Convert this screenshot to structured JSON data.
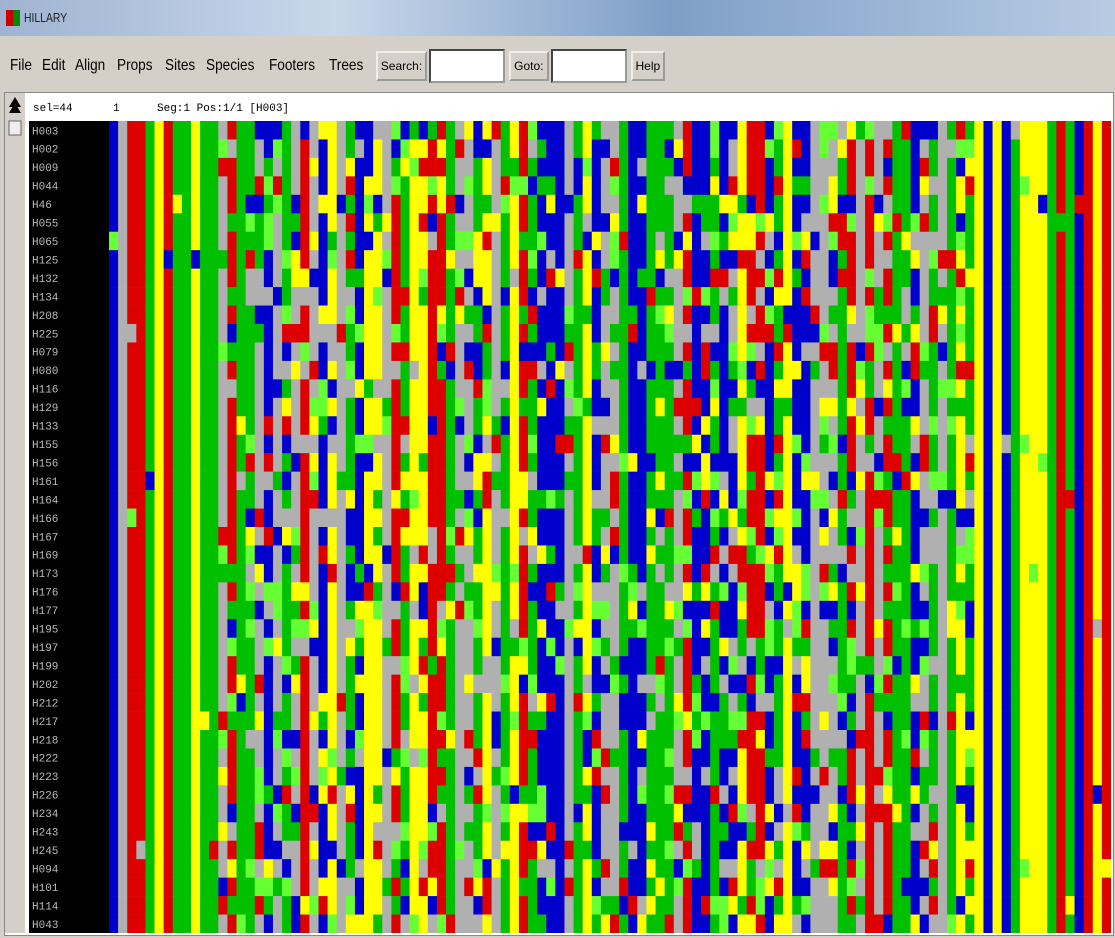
{
  "window": {
    "title": "HILLARY"
  },
  "menu": [
    "File",
    "Edit",
    "Align",
    "Props",
    "Sites",
    "Species",
    "Footers",
    "Trees"
  ],
  "toolbar": {
    "search_label": "Search:",
    "goto_label": "Goto:",
    "help": "Help"
  },
  "status": {
    "selection": "sel=44",
    "position": "1",
    "segment": "Seg:1 Pos:1/1 [H003]"
  },
  "sequences": [
    "H003",
    "H002",
    "H009",
    "H044",
    "H46",
    "H055",
    "H065",
    "H125",
    "H132",
    "H134",
    "H208",
    "H225",
    "H079",
    "H080",
    "H116",
    "H129",
    "H133",
    "H155",
    "H156",
    "H161",
    "H164",
    "H166",
    "H167",
    "H169",
    "H173",
    "H176",
    "H177",
    "H195",
    "H197",
    "H199",
    "H202",
    "H212",
    "H217",
    "H218",
    "H222",
    "H223",
    "H226",
    "H234",
    "H243",
    "H245",
    "H094",
    "H101",
    "H114",
    "H043"
  ]
}
